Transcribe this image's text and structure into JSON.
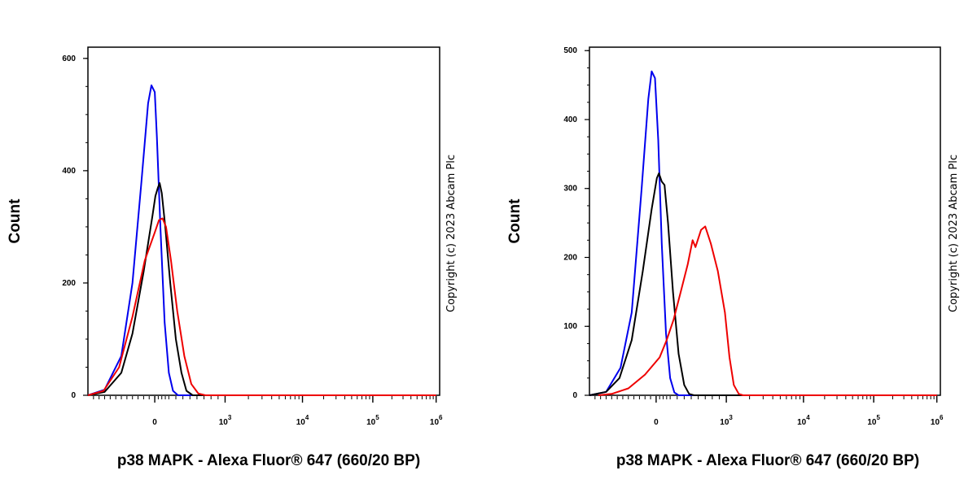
{
  "chart_data": [
    {
      "type": "line",
      "xlabel": "p38 MAPK - Alexa Fluor® 647 (660/20 BP)",
      "ylabel": "Count",
      "copyright": "Copyright (c) 2023 Abcam Plc",
      "ylim": [
        0,
        620
      ],
      "y_ticks": [
        0,
        200,
        400,
        600
      ],
      "x_ticks": [
        {
          "base": "0",
          "exp": ""
        },
        {
          "base": "10",
          "exp": "3"
        },
        {
          "base": "10",
          "exp": "4"
        },
        {
          "base": "10",
          "exp": "5"
        },
        {
          "base": "10",
          "exp": "6"
        }
      ],
      "x_scale": "biexponential",
      "grid": false,
      "series": [
        {
          "color": "#0000ee",
          "points": [
            [
              -600,
              0
            ],
            [
              -450,
              10
            ],
            [
              -300,
              70
            ],
            [
              -200,
              200
            ],
            [
              -120,
              380
            ],
            [
              -60,
              520
            ],
            [
              -30,
              552
            ],
            [
              0,
              540
            ],
            [
              30,
              460
            ],
            [
              80,
              300
            ],
            [
              140,
              130
            ],
            [
              200,
              40
            ],
            [
              260,
              8
            ],
            [
              330,
              0
            ],
            [
              1000000,
              0
            ]
          ]
        },
        {
          "color": "#000000",
          "points": [
            [
              -600,
              0
            ],
            [
              -450,
              6
            ],
            [
              -300,
              40
            ],
            [
              -200,
              110
            ],
            [
              -100,
              220
            ],
            [
              -20,
              320
            ],
            [
              10,
              355
            ],
            [
              45,
              370
            ],
            [
              70,
              378
            ],
            [
              100,
              360
            ],
            [
              150,
              300
            ],
            [
              220,
              200
            ],
            [
              300,
              100
            ],
            [
              380,
              40
            ],
            [
              450,
              8
            ],
            [
              540,
              0
            ],
            [
              1000000,
              0
            ]
          ]
        },
        {
          "color": "#ee0000",
          "points": [
            [
              -600,
              0
            ],
            [
              -460,
              8
            ],
            [
              -320,
              50
            ],
            [
              -200,
              140
            ],
            [
              -90,
              240
            ],
            [
              0,
              290
            ],
            [
              60,
              312
            ],
            [
              110,
              315
            ],
            [
              160,
              300
            ],
            [
              230,
              240
            ],
            [
              320,
              150
            ],
            [
              420,
              70
            ],
            [
              520,
              20
            ],
            [
              620,
              3
            ],
            [
              720,
              0
            ],
            [
              1000000,
              0
            ]
          ]
        }
      ]
    },
    {
      "type": "line",
      "xlabel": "p38 MAPK - Alexa Fluor® 647 (660/20 BP)",
      "ylabel": "Count",
      "copyright": "Copyright (c) 2023 Abcam Plc",
      "ylim": [
        0,
        505
      ],
      "y_ticks": [
        0,
        100,
        200,
        300,
        400,
        500
      ],
      "x_ticks": [
        {
          "base": "0",
          "exp": ""
        },
        {
          "base": "10",
          "exp": "3"
        },
        {
          "base": "10",
          "exp": "4"
        },
        {
          "base": "10",
          "exp": "5"
        },
        {
          "base": "10",
          "exp": "6"
        }
      ],
      "x_scale": "biexponential",
      "grid": false,
      "series": [
        {
          "color": "#0000ee",
          "points": [
            [
              -600,
              0
            ],
            [
              -450,
              5
            ],
            [
              -320,
              40
            ],
            [
              -220,
              120
            ],
            [
              -130,
              300
            ],
            [
              -70,
              430
            ],
            [
              -40,
              470
            ],
            [
              -10,
              460
            ],
            [
              30,
              370
            ],
            [
              80,
              220
            ],
            [
              140,
              90
            ],
            [
              200,
              25
            ],
            [
              260,
              4
            ],
            [
              320,
              0
            ],
            [
              1000000,
              0
            ]
          ]
        },
        {
          "color": "#000000",
          "points": [
            [
              -600,
              0
            ],
            [
              -450,
              5
            ],
            [
              -330,
              25
            ],
            [
              -220,
              80
            ],
            [
              -120,
              180
            ],
            [
              -40,
              270
            ],
            [
              10,
              315
            ],
            [
              40,
              322
            ],
            [
              80,
              310
            ],
            [
              120,
              305
            ],
            [
              170,
              250
            ],
            [
              240,
              150
            ],
            [
              320,
              60
            ],
            [
              400,
              15
            ],
            [
              470,
              2
            ],
            [
              540,
              0
            ],
            [
              1000000,
              0
            ]
          ]
        },
        {
          "color": "#ee0000",
          "points": [
            [
              -520,
              0
            ],
            [
              -400,
              2
            ],
            [
              -250,
              10
            ],
            [
              -100,
              30
            ],
            [
              50,
              55
            ],
            [
              150,
              80
            ],
            [
              250,
              110
            ],
            [
              350,
              150
            ],
            [
              450,
              190
            ],
            [
              520,
              225
            ],
            [
              560,
              215
            ],
            [
              640,
              240
            ],
            [
              700,
              245
            ],
            [
              780,
              220
            ],
            [
              880,
              180
            ],
            [
              980,
              120
            ],
            [
              1100,
              55
            ],
            [
              1250,
              15
            ],
            [
              1450,
              2
            ],
            [
              1650,
              0
            ],
            [
              1000000,
              0
            ]
          ]
        }
      ]
    }
  ]
}
